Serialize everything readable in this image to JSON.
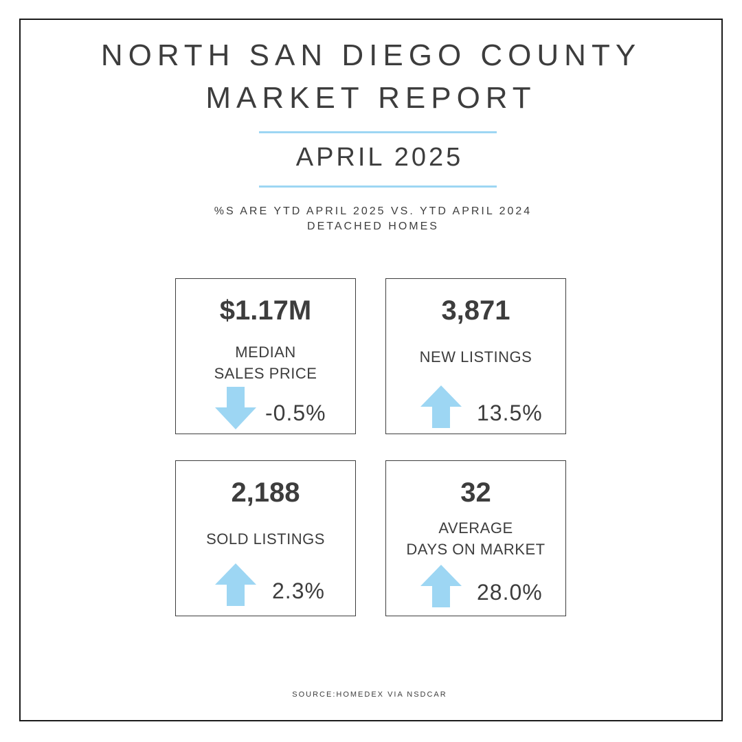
{
  "header": {
    "title_line1": "NORTH SAN DIEGO COUNTY",
    "title_line2": "MARKET REPORT",
    "month": "APRIL 2025",
    "subtitle_line1": "%S ARE YTD APRIL 2025 VS. YTD APRIL 2024",
    "subtitle_line2": "DETACHED HOMES"
  },
  "colors": {
    "accent": "#9dd6f3",
    "text": "#3d3d3d",
    "border": "#1a1a1a"
  },
  "cards": [
    {
      "value": "$1.17M",
      "label_line1": "MEDIAN",
      "label_line2": "SALES PRICE",
      "change": "-0.5%",
      "direction": "down",
      "icon": "arrow-down-icon"
    },
    {
      "value": "3,871",
      "label_line1": "NEW LISTINGS",
      "change": "13.5%",
      "direction": "up",
      "icon": "arrow-up-icon"
    },
    {
      "value": "2,188",
      "label_line1": "SOLD LISTINGS",
      "change": "2.3%",
      "direction": "up",
      "icon": "arrow-up-icon"
    },
    {
      "value": "32",
      "label_line1": "AVERAGE",
      "label_line2": "DAYS ON MARKET",
      "change": "28.0%",
      "direction": "up",
      "icon": "arrow-up-icon"
    }
  ],
  "footer": {
    "source": "SOURCE:HOMEDEX VIA NSDCAR"
  }
}
